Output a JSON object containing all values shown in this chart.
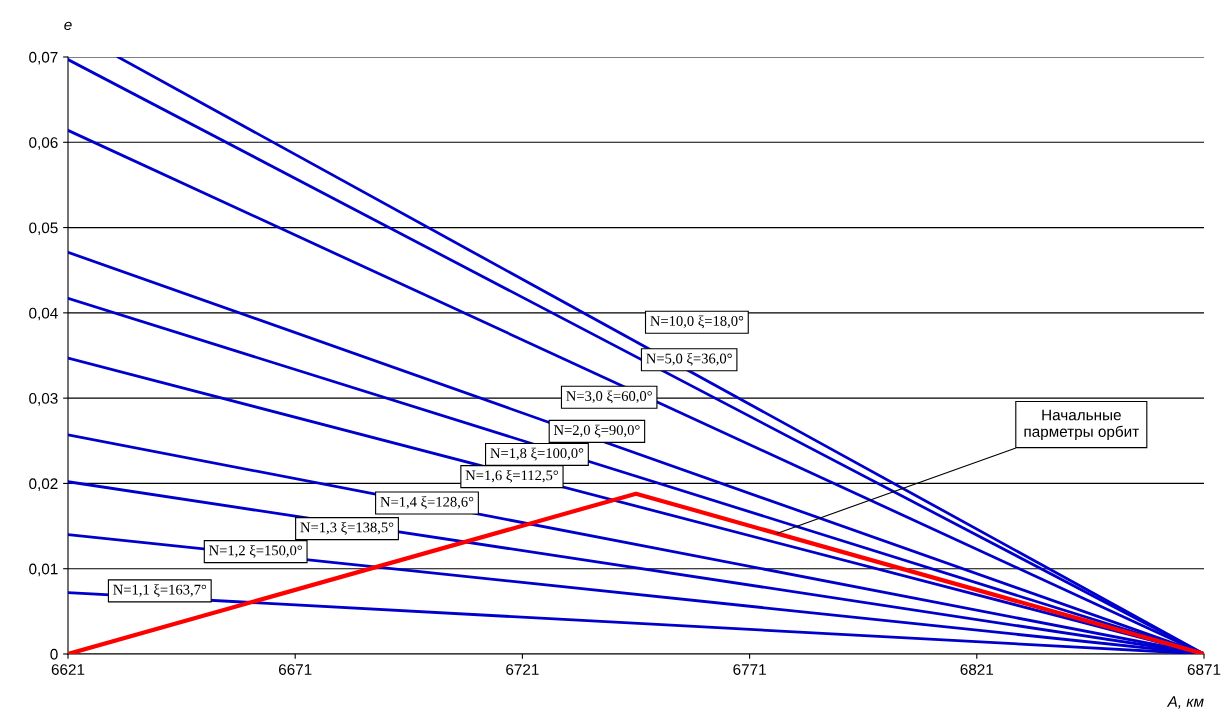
{
  "chart_data": {
    "type": "line",
    "xlabel": "A, км",
    "ylabel": "e",
    "xlim": [
      6621,
      6871
    ],
    "ylim": [
      0,
      0.07
    ],
    "xticks": [
      6621,
      6671,
      6721,
      6771,
      6821,
      6871
    ],
    "yticks": [
      {
        "value": 0,
        "label": "0"
      },
      {
        "value": 0.01,
        "label": "0,01"
      },
      {
        "value": 0.02,
        "label": "0,02"
      },
      {
        "value": 0.03,
        "label": "0,03"
      },
      {
        "value": 0.04,
        "label": "0,04"
      },
      {
        "value": 0.05,
        "label": "0,05"
      },
      {
        "value": 0.06,
        "label": "0,06"
      },
      {
        "value": 0.07,
        "label": "0,07"
      }
    ],
    "grid": "y",
    "legend": false,
    "marker": "none",
    "line_style": "solid",
    "series": [
      {
        "name": "N=10,0 ξ=18,0°",
        "color": "#0000cc",
        "x": [
          6632,
          6871
        ],
        "values": [
          0.07,
          0
        ]
      },
      {
        "name": "N=5,0 ξ=36,0°",
        "color": "#0000cc",
        "x": [
          6621,
          6871
        ],
        "values": [
          0.0697,
          0
        ]
      },
      {
        "name": "N=3,0 ξ=60,0°",
        "color": "#0000cc",
        "x": [
          6621,
          6871
        ],
        "values": [
          0.0614,
          0
        ]
      },
      {
        "name": "N=2,0 ξ=90,0°",
        "color": "#0000cc",
        "x": [
          6621,
          6871
        ],
        "values": [
          0.0471,
          0
        ]
      },
      {
        "name": "N=1,8 ξ=100,0°",
        "color": "#0000cc",
        "x": [
          6621,
          6871
        ],
        "values": [
          0.0417,
          0
        ]
      },
      {
        "name": "N=1,6 ξ=112,5°",
        "color": "#0000cc",
        "x": [
          6621,
          6871
        ],
        "values": [
          0.0347,
          0
        ]
      },
      {
        "name": "N=1,4 ξ=128,6°",
        "color": "#0000cc",
        "x": [
          6621,
          6871
        ],
        "values": [
          0.0257,
          0
        ]
      },
      {
        "name": "N=1,3 ξ=138,5°",
        "color": "#0000cc",
        "x": [
          6621,
          6871
        ],
        "values": [
          0.0202,
          0
        ]
      },
      {
        "name": "N=1,2 ξ=150,0°",
        "color": "#0000cc",
        "x": [
          6621,
          6871
        ],
        "values": [
          0.014,
          0
        ]
      },
      {
        "name": "N=1,1 ξ=163,7°",
        "color": "#0000cc",
        "x": [
          6621,
          6871
        ],
        "values": [
          0.0072,
          0
        ]
      },
      {
        "name": "Начальные\nпарметры орбит",
        "color": "#ff0000",
        "x": [
          6621,
          6746,
          6871
        ],
        "values": [
          0,
          0.0188,
          0
        ]
      }
    ]
  }
}
